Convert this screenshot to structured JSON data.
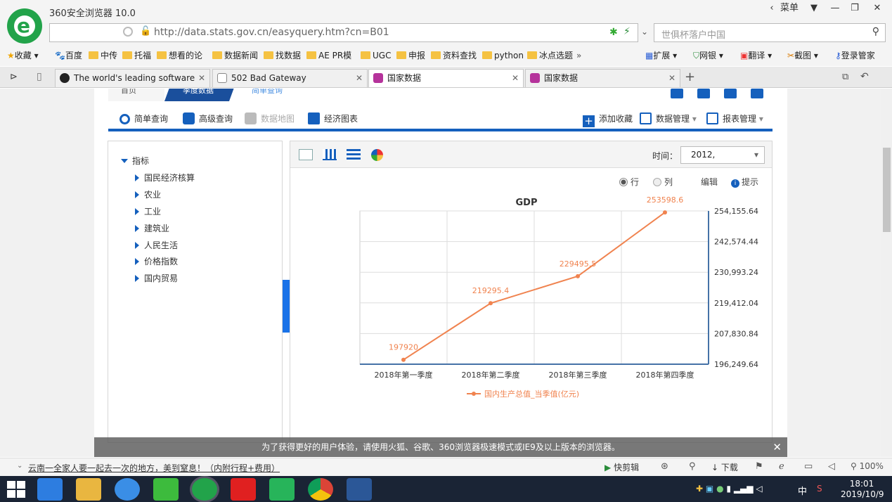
{
  "browser": {
    "title": "360安全浏览器 10.0",
    "menu_label": "菜单",
    "url": "http://data.stats.gov.cn/easyquery.htm?cn=B01",
    "search_placeholder": "世俱杯落户中国",
    "bookmarks": [
      "收藏",
      "百度",
      "中传",
      "托福",
      "想看的论",
      "数据新闻",
      "找数据",
      "AE PR模",
      "UGC",
      "申报",
      "资料查找",
      "python",
      "冰点选题"
    ],
    "bookmarks_right": [
      "扩展",
      "网银",
      "翻译",
      "截图",
      "登录管家"
    ],
    "tabs": [
      {
        "label": "The world's leading software",
        "active": false
      },
      {
        "label": "502 Bad Gateway",
        "active": false
      },
      {
        "label": "国家数据",
        "active": true
      },
      {
        "label": "国家数据",
        "active": false
      }
    ]
  },
  "site": {
    "nav_tabs": [
      "首页",
      "季度数据",
      "简单查询"
    ],
    "tools_left": [
      "简单查询",
      "高级查询",
      "数据地图",
      "经济图表"
    ],
    "tools_right": [
      "添加收藏",
      "数据管理",
      "报表管理"
    ],
    "tree_root": "指标",
    "tree_items": [
      "国民经济核算",
      "农业",
      "工业",
      "建筑业",
      "人民生活",
      "价格指数",
      "国内贸易"
    ],
    "time_label": "时间：",
    "time_value": "2012,",
    "opt_row": "行",
    "opt_col": "列",
    "edit_label": "编辑",
    "hint_label": "提示",
    "notice": "为了获得更好的用户体验，请使用火狐、谷歌、360浏览器极速模式或IE9及以上版本的浏览器。"
  },
  "statusbar": {
    "news": "云南一全家人要一起去一次的地方，美到窒息！（内附行程+费用）",
    "items": [
      "快剪辑",
      "下载"
    ],
    "zoom": "100%"
  },
  "taskbar": {
    "time": "18:01",
    "date": "2019/10/9",
    "ime": "中"
  },
  "colors": {
    "accent": "#1560bd",
    "series": "#f0834f"
  },
  "chart_data": {
    "type": "line",
    "title": "GDP",
    "categories": [
      "2018年第一季度",
      "2018年第二季度",
      "2018年第三季度",
      "2018年第四季度"
    ],
    "series": [
      {
        "name": "国内生产总值_当季值(亿元)",
        "values": [
          197920,
          219295.4,
          229495.5,
          253598.6
        ]
      }
    ],
    "data_labels": [
      "197920",
      "219295.4",
      "229495.5",
      "253598.6"
    ],
    "y_ticks": [
      "254,155.64",
      "242,574.44",
      "230,993.24",
      "219,412.04",
      "207,830.84",
      "196,249.64"
    ],
    "ylim": [
      196249.64,
      254155.64
    ],
    "y_axis_side": "right",
    "legend": "bottom"
  }
}
